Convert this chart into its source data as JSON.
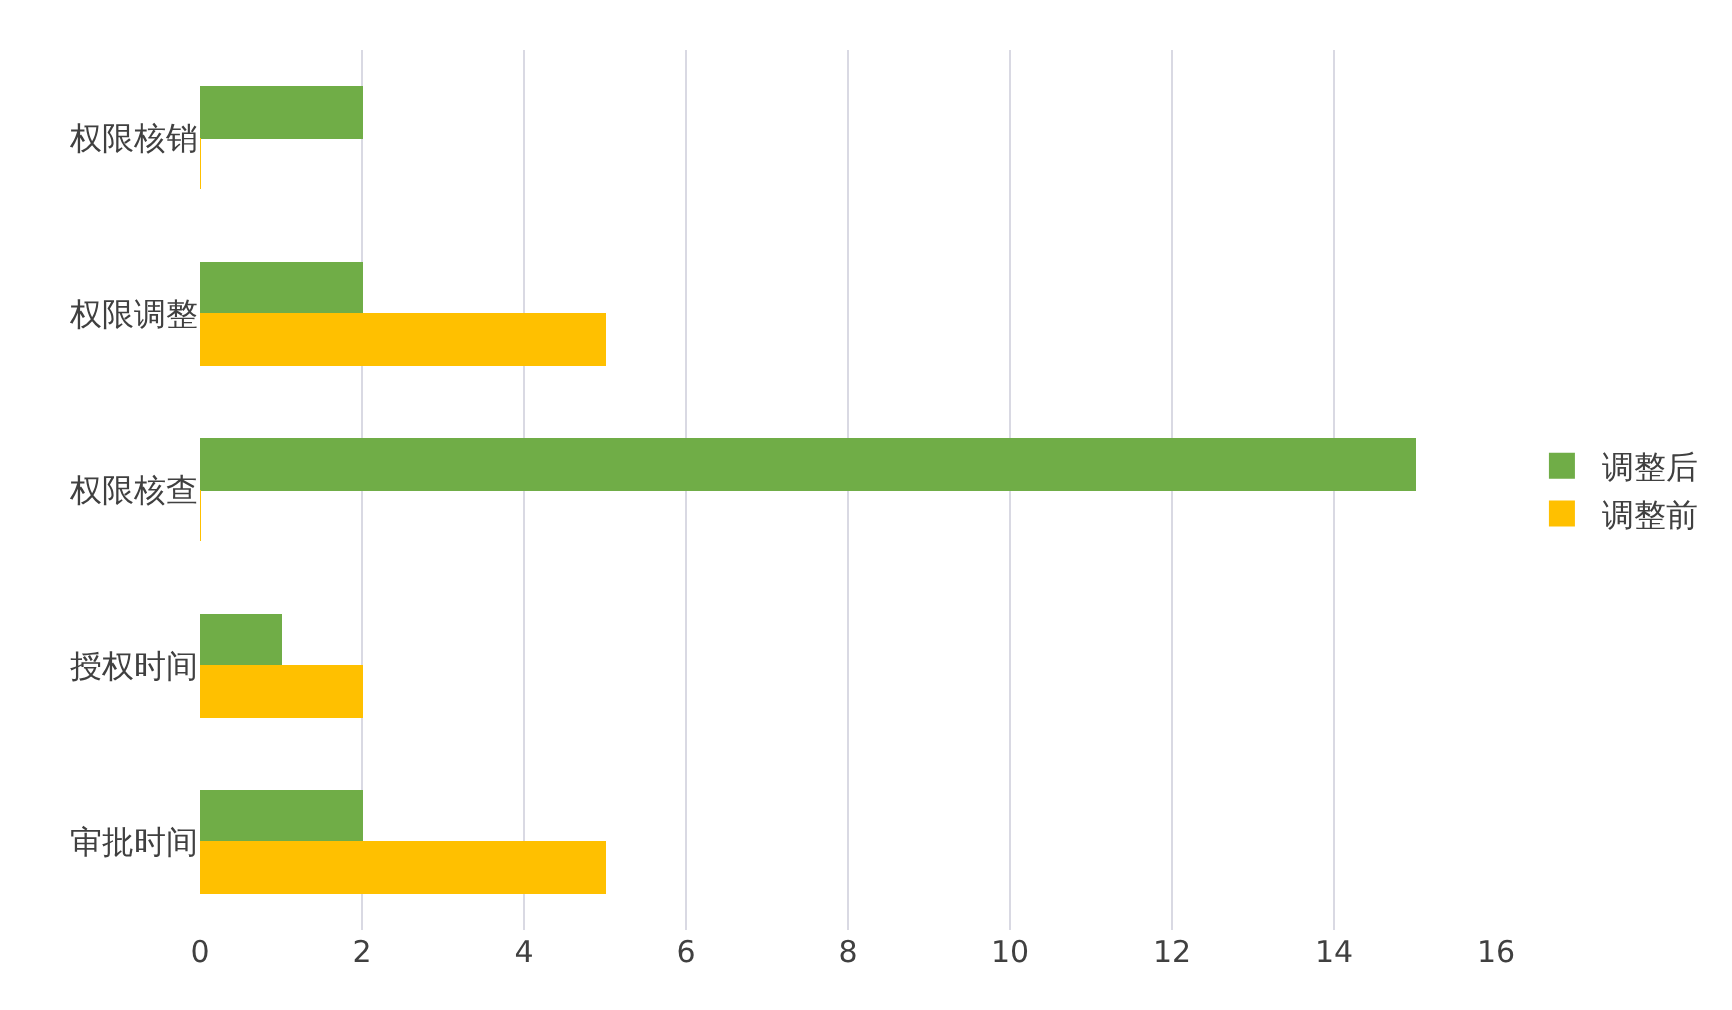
{
  "chart_data": {
    "type": "bar",
    "orientation": "horizontal",
    "categories": [
      "权限核销",
      "权限调整",
      "权限核查",
      "授权时间",
      "审批时间"
    ],
    "series": [
      {
        "name": "调整后",
        "color": "#70ad47",
        "values": [
          2,
          2,
          15,
          1,
          2
        ]
      },
      {
        "name": "调整前",
        "color": "#ffc000",
        "values": [
          0,
          5,
          0,
          2,
          5
        ]
      }
    ],
    "xlim": [
      0,
      16
    ],
    "xticks": [
      0,
      2,
      4,
      6,
      8,
      10,
      12,
      14,
      16
    ],
    "grid": "x",
    "legend": "right"
  }
}
